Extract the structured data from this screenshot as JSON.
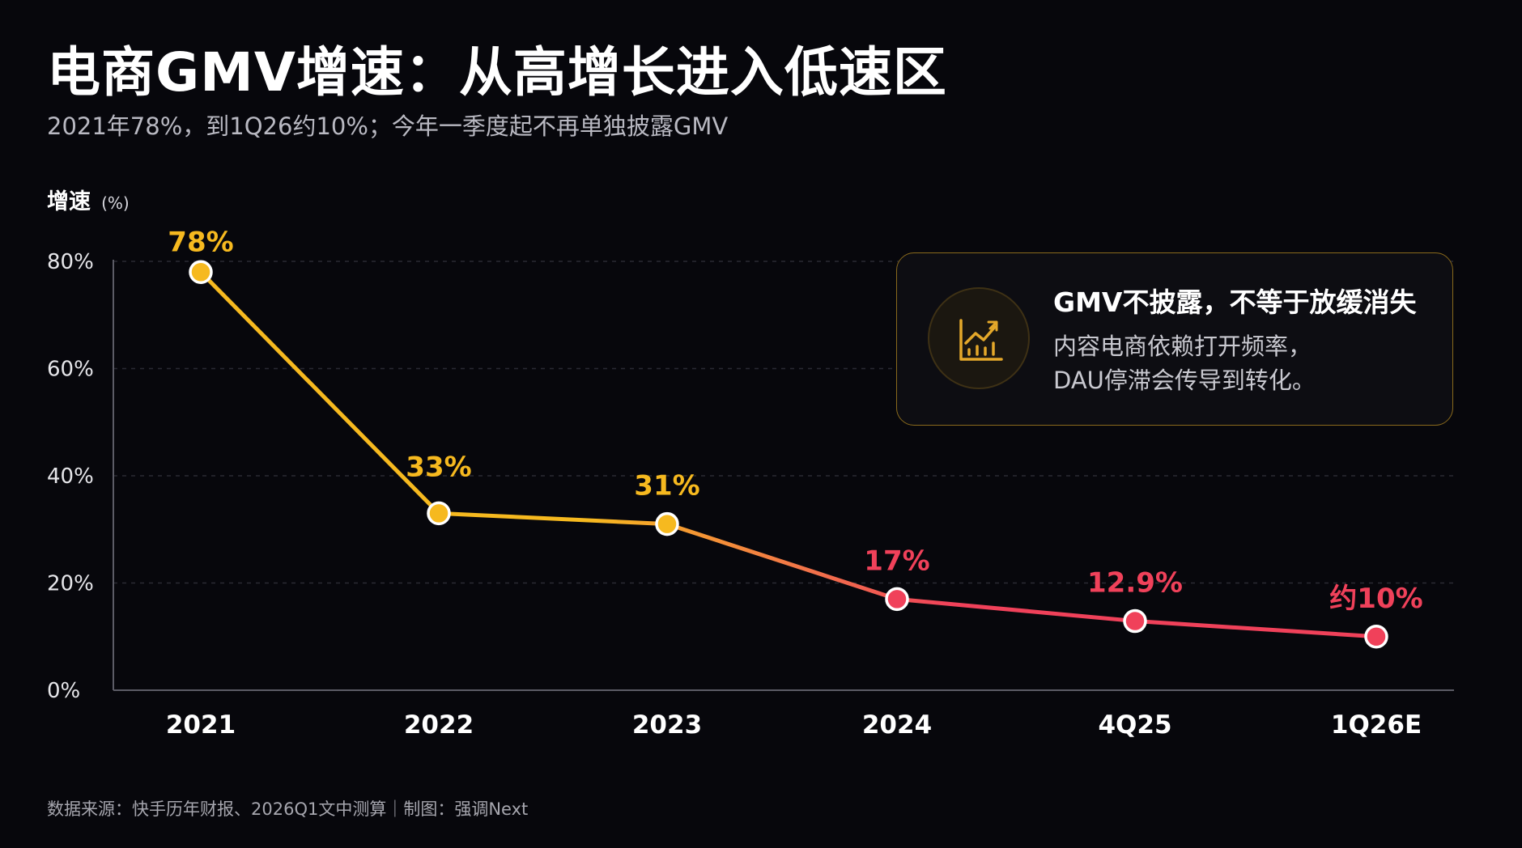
{
  "header": {
    "title": "电商GMV增速：从高增长进入低速区",
    "subtitle": "2021年78%，到1Q26约10%；今年一季度起不再单独披露GMV"
  },
  "callout": {
    "icon": "chart-trend-icon",
    "title": "GMV不披露，不等于放缓消失",
    "line1": "内容电商依赖打开频率，",
    "line2": "DAU停滞会传导到转化。"
  },
  "footer": {
    "source": "数据来源：快手历年财报、2026Q1文中测算｜制图：强调Next"
  },
  "colors": {
    "background": "#07070c",
    "early_series": "#f6b91f",
    "late_series": "#f0415a",
    "callout_border": "#8a6a1c",
    "icon_accent": "#e4a82a"
  },
  "chart_data": {
    "type": "line",
    "ylabel": "增速",
    "ylabel_unit": "(%)",
    "categories": [
      "2021",
      "2022",
      "2023",
      "2024",
      "4Q25",
      "1Q26E"
    ],
    "values": [
      78,
      33,
      31,
      17,
      12.9,
      10
    ],
    "data_labels": [
      "78%",
      "33%",
      "31%",
      "17%",
      "12.9%",
      "约10%"
    ],
    "yticks": [
      "0%",
      "20%",
      "40%",
      "60%",
      "80%"
    ],
    "ytick_values": [
      0,
      20,
      40,
      60,
      80
    ],
    "ylim": [
      0,
      80
    ],
    "grid": true,
    "legend": "none"
  }
}
